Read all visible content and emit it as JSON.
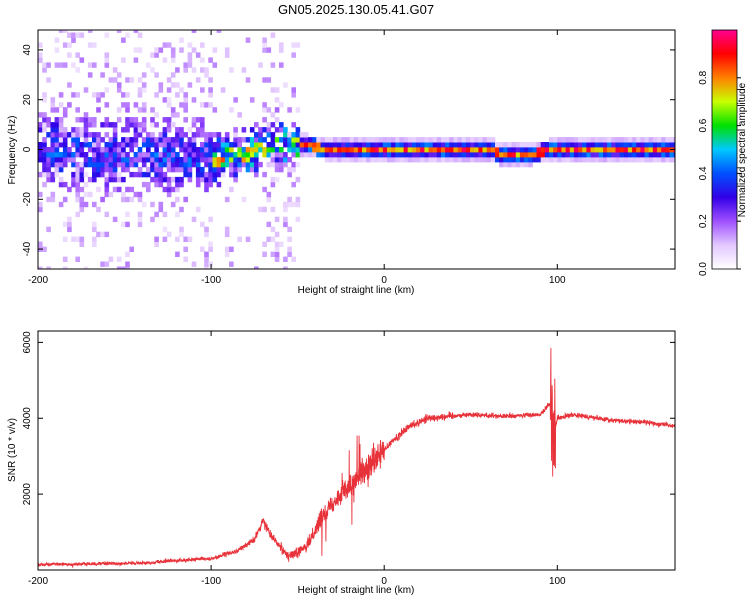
{
  "title": "GN05.2025.130.05.41.G07",
  "colors": {
    "snr_line": "#e8323a",
    "colormap": [
      "#ffffff",
      "#e3c8ff",
      "#9f50ff",
      "#3200e6",
      "#0050ff",
      "#00c8ff",
      "#00e000",
      "#c8ff00",
      "#ff8000",
      "#ff0000",
      "#ff0090"
    ]
  },
  "chart_data": [
    {
      "type": "heatmap",
      "title": "GN05.2025.130.05.41.G07",
      "xlabel": "Height of straight line (km)",
      "ylabel": "Frequency (Hz)",
      "xlim": [
        -200,
        168
      ],
      "ylim": [
        -48,
        48
      ],
      "xticks": [
        -200,
        -100,
        0,
        100
      ],
      "yticks": [
        -40,
        -20,
        0,
        20,
        40
      ],
      "colorbar": {
        "label": "Normalized spectral amplitude",
        "range": [
          0,
          1
        ],
        "ticks": [
          "0.0",
          "0.2",
          "0.4",
          "0.6",
          "0.8"
        ]
      },
      "dominant_frequency_track": [
        {
          "x": -200,
          "y": 0
        },
        {
          "x": -150,
          "y": -2
        },
        {
          "x": -110,
          "y": -3
        },
        {
          "x": -100,
          "y": -4
        },
        {
          "x": -80,
          "y": -2
        },
        {
          "x": -65,
          "y": 2
        },
        {
          "x": -50,
          "y": 2
        },
        {
          "x": -30,
          "y": 0
        },
        {
          "x": 0,
          "y": 0
        },
        {
          "x": 60,
          "y": 0
        },
        {
          "x": 68,
          "y": -2
        },
        {
          "x": 78,
          "y": -2
        },
        {
          "x": 100,
          "y": 0
        },
        {
          "x": 168,
          "y": 0
        }
      ]
    },
    {
      "type": "line",
      "xlabel": "Height of straight line (km)",
      "ylabel": "SNR (10 * v/v)",
      "xlim": [
        -200,
        168
      ],
      "ylim": [
        0,
        6300
      ],
      "xticks": [
        -200,
        -100,
        0,
        100
      ],
      "yticks": [
        2000,
        4000,
        6000
      ],
      "series": [
        {
          "x": [
            -200,
            -180,
            -160,
            -140,
            -120,
            -100,
            -85,
            -75,
            -70,
            -65,
            -55,
            -45,
            -35,
            -25,
            -15,
            -5,
            5,
            15,
            25,
            35,
            50,
            70,
            90,
            96,
            98,
            100,
            110,
            130,
            150,
            168
          ],
          "y": [
            150,
            150,
            170,
            180,
            250,
            300,
            500,
            800,
            1300,
            900,
            350,
            600,
            1500,
            2000,
            2400,
            2900,
            3400,
            3800,
            4000,
            4050,
            4100,
            4050,
            4100,
            4400,
            3500,
            4000,
            4100,
            3950,
            3900,
            3800
          ]
        }
      ]
    }
  ]
}
